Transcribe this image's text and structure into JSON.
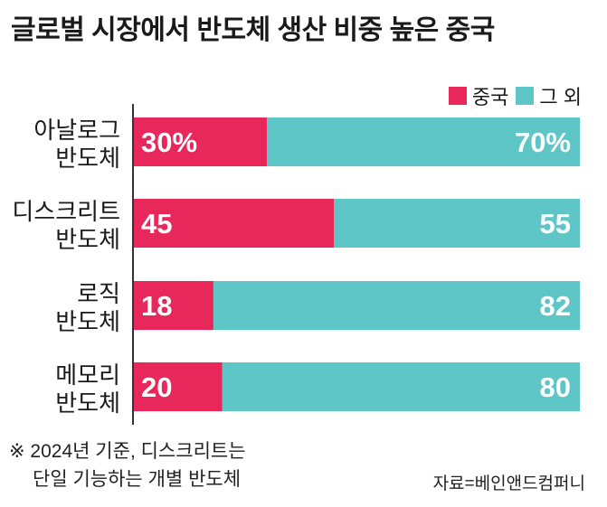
{
  "title": "글로벌 시장에서 반도체 생산 비중 높은 중국",
  "colors": {
    "china": "#e8285a",
    "other": "#5fc6c8"
  },
  "chart_data": {
    "type": "bar",
    "stacked": true,
    "orientation": "horizontal",
    "categories": [
      [
        "아날로그",
        "반도체"
      ],
      [
        "디스크리트",
        "반도체"
      ],
      [
        "로직",
        "반도체"
      ],
      [
        "메모리",
        "반도체"
      ]
    ],
    "series": [
      {
        "name": "중국",
        "values": [
          30,
          45,
          18,
          20
        ],
        "labels": [
          "30%",
          "45",
          "18",
          "20"
        ]
      },
      {
        "name": "그 외",
        "values": [
          70,
          55,
          82,
          80
        ],
        "labels": [
          "70%",
          "55",
          "82",
          "80"
        ]
      }
    ],
    "xlim": [
      0,
      100
    ],
    "legend_position": "top-right",
    "grid": false
  },
  "footnote": {
    "line1": "※ 2024년 기준, 디스크리트는",
    "line2": "단일 기능하는 개별 반도체"
  },
  "source": "자료=베인앤드컴퍼니"
}
